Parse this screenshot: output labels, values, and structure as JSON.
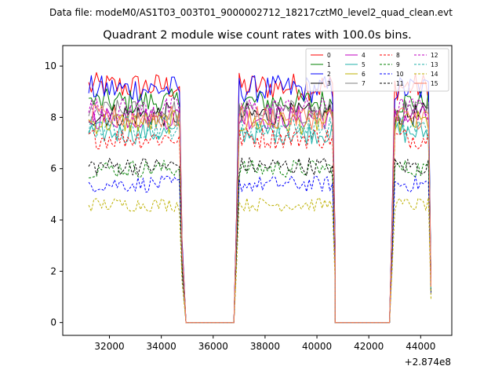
{
  "chart_data": {
    "type": "line",
    "suptitle": "Data file: modeM0/AS1T03_003T01_9000002712_18217cztM0_level2_quad_clean.evt",
    "title": "Quadrant 2 module wise count rates with 100.0s bins.",
    "xlabel": "",
    "ylabel": "",
    "x_offset_label": "+2.874e8",
    "xlim": [
      30200,
      45200
    ],
    "ylim": [
      -0.5,
      10.8
    ],
    "x_ticks": [
      32000,
      34000,
      36000,
      38000,
      40000,
      42000,
      44000
    ],
    "x_tick_labels": [
      "32000",
      "34000",
      "36000",
      "38000",
      "40000",
      "42000",
      "44000"
    ],
    "y_ticks": [
      0,
      2,
      4,
      6,
      8,
      10
    ],
    "y_tick_labels": [
      "0",
      "2",
      "4",
      "6",
      "8",
      "10"
    ],
    "legend_location": "top-right",
    "legend_columns": 4,
    "segments": [
      {
        "start": 31200,
        "end": 34700
      },
      {
        "start": 37000,
        "end": 40600
      },
      {
        "start": 43000,
        "end": 44300
      }
    ],
    "gaps": [
      {
        "drop_end": 34700,
        "zero_from": 34950,
        "zero_to": 36800,
        "rise_start": 37000
      },
      {
        "drop_end": 40600,
        "zero_from": 40700,
        "zero_to": 42800,
        "rise_start": 43000
      }
    ],
    "series": [
      {
        "name": "0",
        "color": "#ff0000",
        "dash": false,
        "mean": 9.2,
        "tail": 1.5
      },
      {
        "name": "1",
        "color": "#008000",
        "dash": false,
        "mean": 8.6,
        "tail": 1.5
      },
      {
        "name": "2",
        "color": "#0000ff",
        "dash": false,
        "mean": 9.1,
        "tail": 1.5
      },
      {
        "name": "3",
        "color": "#000000",
        "dash": false,
        "mean": 8.1,
        "tail": 1.4
      },
      {
        "name": "4",
        "color": "#c000c0",
        "dash": false,
        "mean": 8.0,
        "tail": 1.4
      },
      {
        "name": "5",
        "color": "#20b2aa",
        "dash": false,
        "mean": 7.4,
        "tail": 1.3
      },
      {
        "name": "6",
        "color": "#bdb000",
        "dash": false,
        "mean": 7.8,
        "tail": 1.4
      },
      {
        "name": "7",
        "color": "#808080",
        "dash": false,
        "mean": 8.2,
        "tail": 1.4
      },
      {
        "name": "8",
        "color": "#ff0000",
        "dash": true,
        "mean": 7.2,
        "tail": 1.3
      },
      {
        "name": "9",
        "color": "#008000",
        "dash": true,
        "mean": 6.0,
        "tail": 1.2
      },
      {
        "name": "10",
        "color": "#0000ff",
        "dash": true,
        "mean": 5.4,
        "tail": 1.1
      },
      {
        "name": "11",
        "color": "#000000",
        "dash": true,
        "mean": 6.1,
        "tail": 1.2
      },
      {
        "name": "12",
        "color": "#c000c0",
        "dash": true,
        "mean": 8.3,
        "tail": 1.4
      },
      {
        "name": "13",
        "color": "#20b2aa",
        "dash": true,
        "mean": 7.6,
        "tail": 1.3
      },
      {
        "name": "14",
        "color": "#bdb000",
        "dash": true,
        "mean": 4.6,
        "tail": 0.9
      },
      {
        "name": "15",
        "color": "#ff8060",
        "dash": false,
        "mean": 8.0,
        "tail": 1.4
      }
    ]
  }
}
